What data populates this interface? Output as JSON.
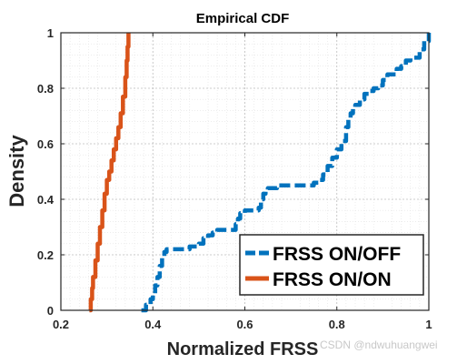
{
  "chart_data": {
    "type": "line",
    "title": "Empirical CDF",
    "xlabel": "Normalized FRSS",
    "ylabel": "Density",
    "xlim": [
      0.2,
      1
    ],
    "ylim": [
      0,
      1
    ],
    "xticks": [
      "0.2",
      "0.4",
      "0.6",
      "0.8",
      "1"
    ],
    "yticks": [
      "0",
      "0.2",
      "0.4",
      "0.6",
      "0.8",
      "1"
    ],
    "grid": true,
    "minor_grid": true,
    "legend_position": "bottom-right",
    "series": [
      {
        "name": "FRSS ON/OFF",
        "color": "#0072BD",
        "style": "dashed",
        "x": [
          0.375,
          0.385,
          0.395,
          0.4,
          0.405,
          0.41,
          0.415,
          0.42,
          0.425,
          0.43,
          0.45,
          0.47,
          0.48,
          0.49,
          0.5,
          0.51,
          0.52,
          0.53,
          0.54,
          0.55,
          0.56,
          0.575,
          0.58,
          0.585,
          0.59,
          0.6,
          0.615,
          0.63,
          0.635,
          0.64,
          0.645,
          0.65,
          0.67,
          0.69,
          0.72,
          0.75,
          0.76,
          0.77,
          0.78,
          0.79,
          0.8,
          0.81,
          0.82,
          0.825,
          0.83,
          0.835,
          0.84,
          0.85,
          0.86,
          0.87,
          0.88,
          0.89,
          0.9,
          0.91,
          0.93,
          0.94,
          0.95,
          0.96,
          0.97,
          0.98,
          0.99,
          1.0
        ],
        "y": [
          0.0,
          0.02,
          0.04,
          0.06,
          0.09,
          0.12,
          0.16,
          0.19,
          0.21,
          0.22,
          0.22,
          0.22,
          0.23,
          0.23,
          0.24,
          0.26,
          0.27,
          0.28,
          0.29,
          0.29,
          0.29,
          0.29,
          0.31,
          0.33,
          0.35,
          0.36,
          0.36,
          0.37,
          0.4,
          0.42,
          0.43,
          0.44,
          0.45,
          0.45,
          0.45,
          0.46,
          0.47,
          0.49,
          0.52,
          0.55,
          0.58,
          0.61,
          0.66,
          0.69,
          0.71,
          0.73,
          0.74,
          0.76,
          0.78,
          0.79,
          0.8,
          0.81,
          0.83,
          0.85,
          0.87,
          0.88,
          0.9,
          0.91,
          0.91,
          0.94,
          0.97,
          1.0
        ]
      },
      {
        "name": "FRSS ON/ON",
        "color": "#D95319",
        "style": "solid",
        "x": [
          0.262,
          0.265,
          0.268,
          0.27,
          0.275,
          0.28,
          0.285,
          0.29,
          0.295,
          0.3,
          0.305,
          0.31,
          0.315,
          0.32,
          0.325,
          0.33,
          0.335,
          0.34,
          0.343,
          0.345,
          0.347
        ],
        "y": [
          0.0,
          0.04,
          0.08,
          0.12,
          0.18,
          0.24,
          0.3,
          0.36,
          0.42,
          0.47,
          0.5,
          0.54,
          0.58,
          0.62,
          0.66,
          0.71,
          0.77,
          0.84,
          0.9,
          0.95,
          1.0
        ]
      }
    ]
  },
  "watermark": "CSDN @ndwuhuangwei"
}
